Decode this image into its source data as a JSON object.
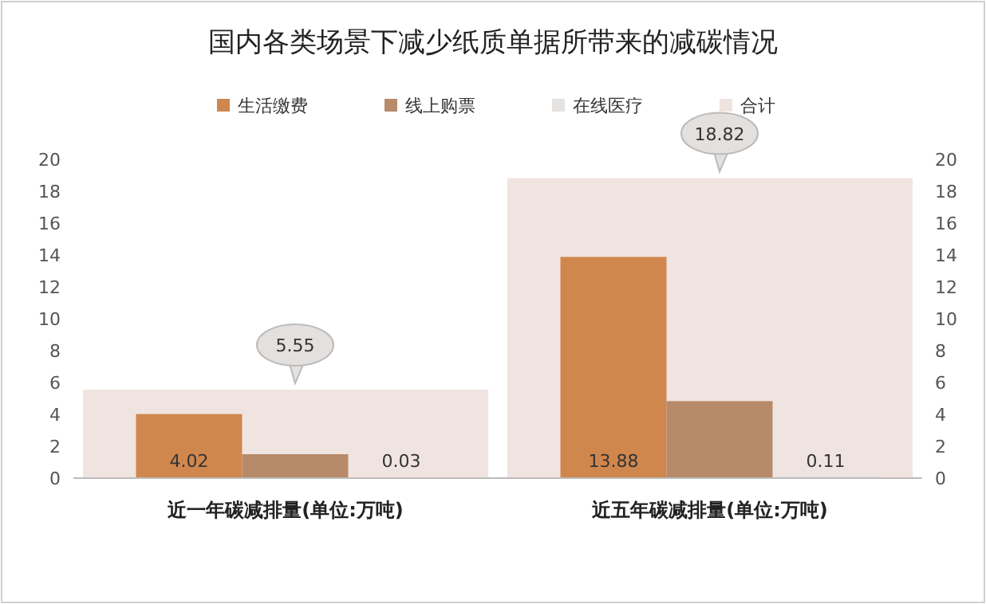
{
  "chart_data": {
    "type": "bar",
    "title": "国内各类场景下减少纸质单据所带来的减碳情况",
    "categories": [
      "近一年碳减排量(单位:万吨)",
      "近五年碳减排量(单位:万吨)"
    ],
    "series": [
      {
        "name": "生活缴费",
        "color": "#d0874e",
        "values": [
          4.02,
          13.88
        ],
        "value_labels": [
          "4.02",
          "13.88"
        ]
      },
      {
        "name": "线上购票",
        "color": "#b78a6a",
        "values": [
          1.5,
          4.83
        ],
        "value_labels": [
          null,
          null
        ]
      },
      {
        "name": "在线医疗",
        "color": "#e6e3e0",
        "values": [
          0.03,
          0.11
        ],
        "value_labels": [
          "0.03",
          "0.11"
        ]
      },
      {
        "name": "合计",
        "color": "#f0e4e0",
        "values": [
          5.55,
          18.82
        ],
        "value_labels": [
          "5.55",
          "18.82"
        ],
        "axis": "y2"
      }
    ],
    "ylim": [
      0,
      20
    ],
    "yticks": [
      0,
      2,
      4,
      6,
      8,
      10,
      12,
      14,
      16,
      18,
      20
    ],
    "y2lim": [
      0,
      20
    ],
    "y2ticks": [
      0,
      2,
      4,
      6,
      8,
      10,
      12,
      14,
      16,
      18,
      20
    ],
    "legend": "top"
  }
}
